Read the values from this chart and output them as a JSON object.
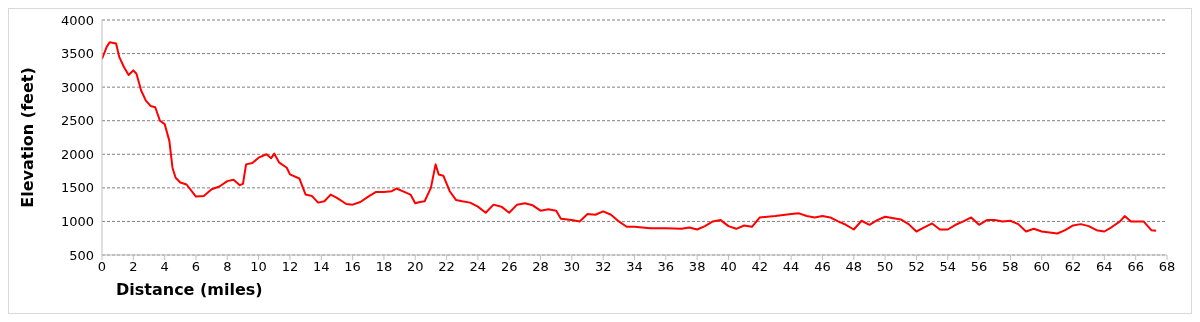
{
  "chart_data": {
    "type": "line",
    "xlabel": "Distance (miles)",
    "ylabel": "Elevation (feet)",
    "x": [
      0,
      0.3,
      0.5,
      0.9,
      1.1,
      1.4,
      1.7,
      2,
      2.2,
      2.5,
      2.8,
      3.1,
      3.4,
      3.7,
      4,
      4.3,
      4.5,
      4.7,
      5,
      5.4,
      5.8,
      6,
      6.5,
      7,
      7.5,
      8,
      8.4,
      8.8,
      9,
      9.2,
      9.6,
      10,
      10.5,
      10.8,
      11,
      11.3,
      11.8,
      12,
      12.6,
      13,
      13.4,
      13.8,
      14.2,
      14.6,
      15,
      15.6,
      16,
      16.5,
      17,
      17.5,
      18,
      18.5,
      18.8,
      19.3,
      19.7,
      20,
      20.3,
      20.6,
      21,
      21.3,
      21.5,
      21.8,
      22.2,
      22.6,
      23,
      23.5,
      24,
      24.5,
      25,
      25.5,
      26,
      26.5,
      27,
      27.5,
      28,
      28.5,
      29,
      29.3,
      30,
      30.5,
      31,
      31.5,
      32,
      32.5,
      33,
      33.5,
      34,
      35,
      36,
      37,
      37.5,
      38,
      38.5,
      39,
      39.5,
      40,
      40.5,
      41,
      41.5,
      42,
      43,
      44,
      44.5,
      45,
      45.5,
      46,
      46.5,
      47,
      47.5,
      48,
      48.5,
      49,
      49.5,
      50,
      51,
      51.5,
      52,
      52.5,
      53,
      53.5,
      54,
      54.5,
      55,
      55.5,
      56,
      56.5,
      57,
      57.5,
      58,
      58.5,
      59,
      59.5,
      60,
      61,
      61.5,
      62,
      62.5,
      63,
      63.5,
      64,
      64.5,
      65,
      65.3,
      65.7,
      66.5,
      67,
      67.3
    ],
    "series": [
      {
        "color": "#ff0000",
        "values": [
          3420,
          3600,
          3670,
          3650,
          3450,
          3300,
          3180,
          3250,
          3200,
          2950,
          2800,
          2720,
          2700,
          2500,
          2450,
          2200,
          1800,
          1650,
          1580,
          1550,
          1430,
          1370,
          1380,
          1480,
          1520,
          1600,
          1620,
          1540,
          1560,
          1850,
          1870,
          1950,
          2000,
          1940,
          2010,
          1880,
          1800,
          1700,
          1640,
          1400,
          1380,
          1280,
          1300,
          1400,
          1350,
          1260,
          1250,
          1290,
          1370,
          1440,
          1440,
          1450,
          1490,
          1440,
          1400,
          1270,
          1290,
          1300,
          1500,
          1850,
          1700,
          1680,
          1450,
          1320,
          1300,
          1280,
          1220,
          1130,
          1250,
          1220,
          1130,
          1250,
          1270,
          1240,
          1160,
          1180,
          1160,
          1040,
          1020,
          1000,
          1110,
          1100,
          1150,
          1100,
          1000,
          920,
          920,
          900,
          900,
          890,
          910,
          880,
          930,
          1000,
          1020,
          930,
          890,
          940,
          920,
          1060,
          1080,
          1110,
          1120,
          1080,
          1060,
          1080,
          1060,
          1000,
          950,
          880,
          1010,
          950,
          1020,
          1070,
          1030,
          960,
          850,
          910,
          970,
          880,
          880,
          950,
          1000,
          1060,
          950,
          1020,
          1020,
          1000,
          1010,
          960,
          850,
          890,
          850,
          820,
          870,
          940,
          960,
          930,
          870,
          850,
          920,
          1000,
          1080,
          1000,
          1000,
          870,
          860
        ]
      }
    ],
    "xlim": [
      0,
      68
    ],
    "xticks": [
      0,
      2,
      4,
      6,
      8,
      10,
      12,
      14,
      16,
      18,
      20,
      22,
      24,
      26,
      28,
      30,
      32,
      34,
      36,
      38,
      40,
      42,
      44,
      46,
      48,
      50,
      52,
      54,
      56,
      58,
      60,
      62,
      64,
      66,
      68
    ],
    "ylim": [
      500,
      4000
    ],
    "yticks": [
      500,
      1000,
      1500,
      2000,
      2500,
      3000,
      3500,
      4000
    ],
    "grid": "y",
    "marker": "none",
    "line_style": "solid",
    "legend": false
  }
}
